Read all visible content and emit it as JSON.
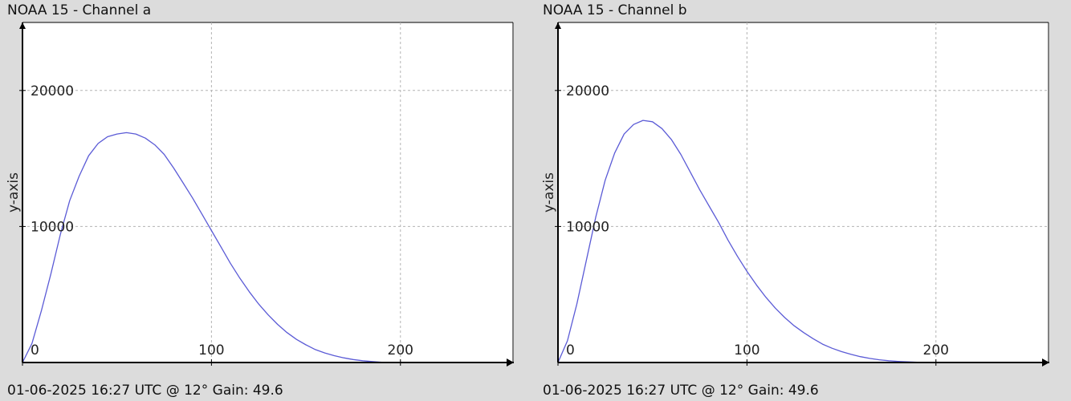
{
  "panels": [
    {
      "title": "NOAA 15 - Channel a",
      "footer": "01-06-2025 16:27 UTC @ 12° Gain: 49.6"
    },
    {
      "title": "NOAA 15 - Channel b",
      "footer": "01-06-2025 16:27 UTC @ 12° Gain: 49.6"
    }
  ],
  "colors": {
    "background": "#dcdcdc",
    "plot_area": "#ffffff",
    "series": "#5b5bd6",
    "grid": "#b4b4b4",
    "axis": "#000000"
  },
  "chart_data": [
    {
      "type": "line",
      "title": "NOAA 15 - Channel a",
      "xlabel": "",
      "ylabel": "y-axis",
      "xlim": [
        0,
        260
      ],
      "ylim": [
        0,
        25000
      ],
      "x_ticks": [
        0,
        100,
        200
      ],
      "x_tick_labels": [
        "0",
        "100",
        "200"
      ],
      "y_ticks": [
        10000,
        20000
      ],
      "y_tick_labels": [
        "10000",
        "20000"
      ],
      "grid": true,
      "series": [
        {
          "x": [
            0,
            5,
            10,
            15,
            20,
            25,
            30,
            35,
            40,
            45,
            50,
            55,
            60,
            65,
            70,
            75,
            80,
            85,
            90,
            95,
            100,
            105,
            110,
            115,
            120,
            125,
            130,
            135,
            140,
            145,
            150,
            155,
            160,
            165,
            170,
            175,
            180,
            185,
            190
          ],
          "y": [
            0,
            1400,
            3800,
            6500,
            9400,
            11900,
            13700,
            15200,
            16100,
            16600,
            16800,
            16900,
            16800,
            16500,
            16000,
            15300,
            14300,
            13200,
            12100,
            10900,
            9700,
            8500,
            7300,
            6200,
            5200,
            4300,
            3500,
            2800,
            2200,
            1700,
            1300,
            950,
            700,
            500,
            340,
            220,
            130,
            70,
            20
          ]
        }
      ]
    },
    {
      "type": "line",
      "title": "NOAA 15 - Channel b",
      "xlabel": "",
      "ylabel": "y-axis",
      "xlim": [
        0,
        260
      ],
      "ylim": [
        0,
        25000
      ],
      "x_ticks": [
        0,
        100,
        200
      ],
      "x_tick_labels": [
        "0",
        "100",
        "200"
      ],
      "y_ticks": [
        10000,
        20000
      ],
      "y_tick_labels": [
        "10000",
        "20000"
      ],
      "grid": true,
      "series": [
        {
          "x": [
            0,
            5,
            10,
            15,
            20,
            25,
            30,
            35,
            40,
            45,
            50,
            55,
            60,
            65,
            70,
            75,
            80,
            85,
            90,
            95,
            100,
            105,
            110,
            115,
            120,
            125,
            130,
            135,
            140,
            145,
            150,
            155,
            160,
            165,
            170,
            175,
            180,
            185,
            190,
            195
          ],
          "y": [
            0,
            1600,
            4300,
            7500,
            10700,
            13400,
            15400,
            16800,
            17500,
            17800,
            17700,
            17200,
            16400,
            15300,
            14000,
            12700,
            11500,
            10300,
            9000,
            7800,
            6700,
            5700,
            4800,
            4000,
            3300,
            2700,
            2200,
            1750,
            1350,
            1050,
            800,
            600,
            430,
            300,
            200,
            130,
            80,
            45,
            20,
            10
          ]
        }
      ]
    }
  ]
}
